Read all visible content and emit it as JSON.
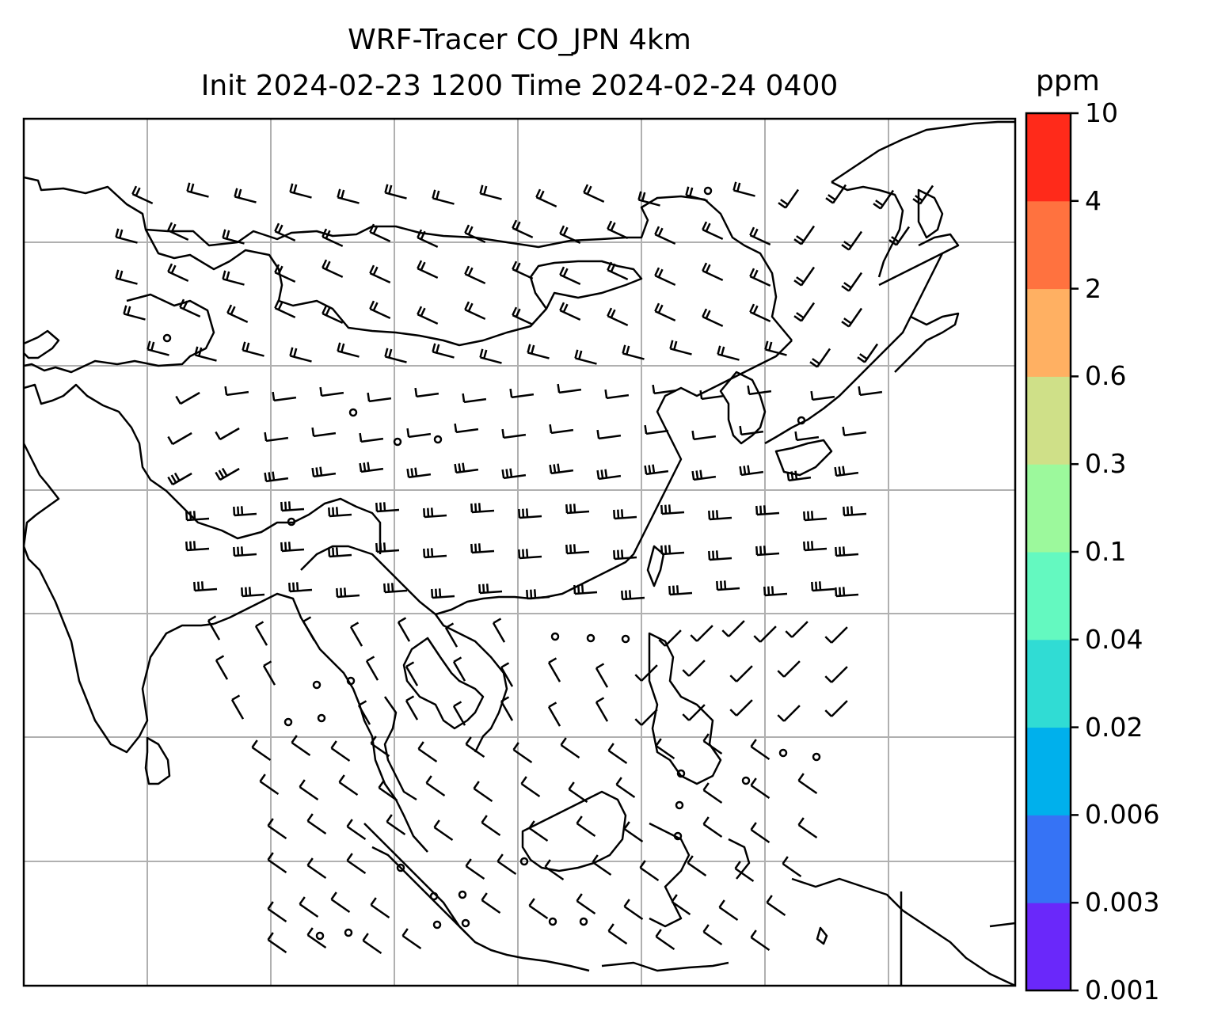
{
  "title": {
    "line1": "WRF-Tracer CO_JPN 4km",
    "line2": "Init 2024-02-23 1200 Time 2024-02-24 0400"
  },
  "colorbar": {
    "unit": "ppm",
    "levels": [
      "0.001",
      "0.003",
      "0.006",
      "0.02",
      "0.04",
      "0.1",
      "0.3",
      "0.6",
      "2",
      "4",
      "10"
    ],
    "colors": [
      "#6a28fa",
      "#3673f5",
      "#00b0ec",
      "#30dcd4",
      "#64f9c0",
      "#9cf99c",
      "#cfe088",
      "#ffb062",
      "#ff723f",
      "#ff2a1a"
    ]
  },
  "map": {
    "gridlines": true,
    "gridline_color": "#b0b0b0",
    "coastline_color": "#000000",
    "barb_color": "#000000"
  }
}
